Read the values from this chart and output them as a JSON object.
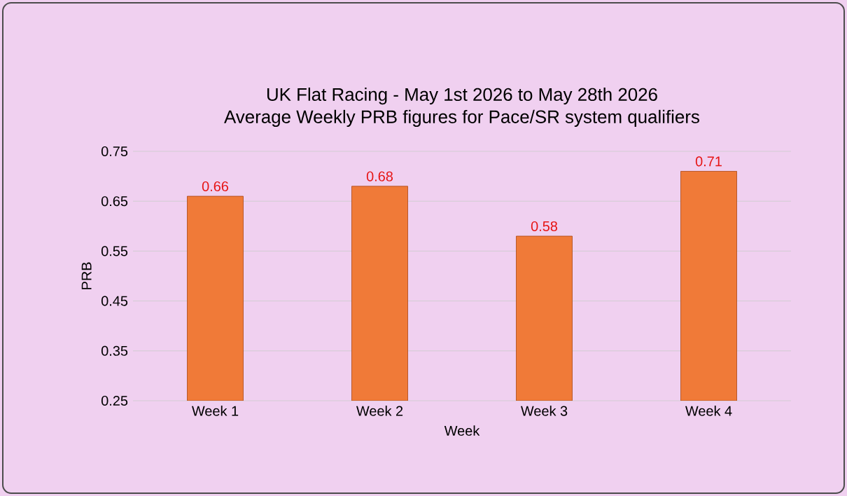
{
  "chart_data": {
    "type": "bar",
    "title": "UK Flat Racing - May 1st 2026 to May 28th 2026",
    "subtitle": "Average Weekly PRB figures for Pace/SR system qualifiers",
    "xlabel": "Week",
    "ylabel": "PRB",
    "categories": [
      "Week 1",
      "Week 2",
      "Week 3",
      "Week 4"
    ],
    "values": [
      0.66,
      0.68,
      0.58,
      0.71
    ],
    "color": "#f07a38",
    "ylim": [
      0.25,
      0.75
    ],
    "yticks": [
      0.25,
      0.35,
      0.45,
      0.55,
      0.65,
      0.75
    ],
    "grid": "y",
    "data_labels": true
  }
}
